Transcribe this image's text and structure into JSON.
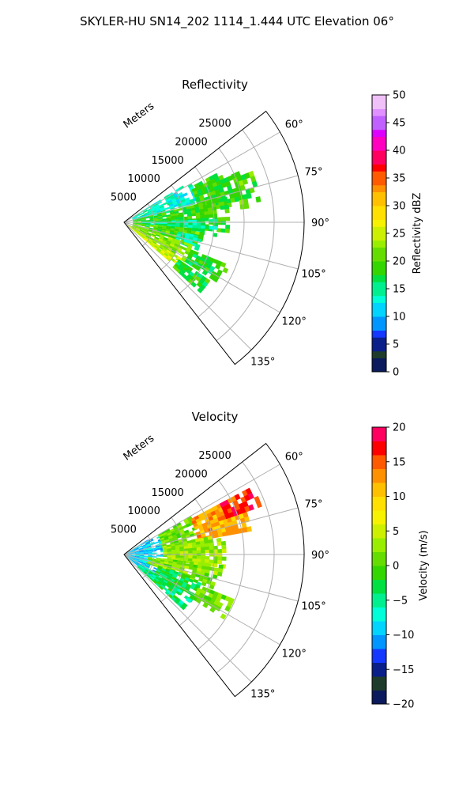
{
  "suptitle": "SKYLER-HU  SN14_202  1114_1.444 UTC Elevation 06°",
  "chart_data": [
    {
      "type": "heatmap",
      "projection": "polar-sector",
      "title": "Reflectivity",
      "radial_label": "Meters",
      "r_ticks": [
        "5000",
        "10000",
        "15000",
        "20000",
        "25000"
      ],
      "r_tick_values": [
        5000,
        10000,
        15000,
        20000,
        25000
      ],
      "rlim": [
        0,
        30000
      ],
      "theta_ticks": [
        "60°",
        "75°",
        "90°",
        "105°",
        "120°",
        "135°"
      ],
      "theta_tick_values": [
        60,
        75,
        90,
        105,
        120,
        135
      ],
      "theta_range_deg": [
        52,
        142
      ],
      "grid": true,
      "colorbar": {
        "label": "Reflectivity dBZ",
        "ticks": [
          "0",
          "5",
          "10",
          "15",
          "20",
          "25",
          "30",
          "35",
          "40",
          "45",
          "50"
        ],
        "range": [
          0,
          50
        ],
        "levels": 40,
        "colormap": [
          [
            0,
            "#0a1a5c"
          ],
          [
            2,
            "#1f3b2c"
          ],
          [
            4,
            "#0a1f8a"
          ],
          [
            6,
            "#1438ff"
          ],
          [
            8,
            "#0096ff"
          ],
          [
            10,
            "#00d4ff"
          ],
          [
            12,
            "#00ffd8"
          ],
          [
            14,
            "#00f090"
          ],
          [
            16,
            "#00e040"
          ],
          [
            18,
            "#33d600"
          ],
          [
            20,
            "#66dd00"
          ],
          [
            22,
            "#99ee00"
          ],
          [
            24,
            "#ccf000"
          ],
          [
            26,
            "#f6f200"
          ],
          [
            28,
            "#ffe000"
          ],
          [
            30,
            "#ffc000"
          ],
          [
            32,
            "#ff9000"
          ],
          [
            34,
            "#ff5a00"
          ],
          [
            36,
            "#ff0000"
          ],
          [
            38,
            "#ff0060"
          ],
          [
            40,
            "#ff00c0"
          ],
          [
            42,
            "#dd00ff"
          ],
          [
            44,
            "#c060ff"
          ],
          [
            46,
            "#e090ff"
          ],
          [
            48,
            "#f0c0f8"
          ],
          [
            50,
            "#fbe6fb"
          ]
        ]
      },
      "regions": [
        {
          "theta": [
            58,
            76
          ],
          "r": [
            1500,
            8000
          ],
          "value": 14
        },
        {
          "theta": [
            58,
            74
          ],
          "r": [
            8000,
            12500
          ],
          "value": 13
        },
        {
          "theta": [
            62,
            80
          ],
          "r": [
            12500,
            19500
          ],
          "value": 19
        },
        {
          "theta": [
            66,
            82
          ],
          "r": [
            19500,
            23000
          ],
          "value": 20
        },
        {
          "theta": [
            76,
            95
          ],
          "r": [
            1500,
            17000
          ],
          "value": 19
        },
        {
          "theta": [
            88,
            98
          ],
          "r": [
            3000,
            15000
          ],
          "value": 15
        },
        {
          "theta": [
            95,
            108
          ],
          "r": [
            1500,
            13000
          ],
          "value": 20
        },
        {
          "theta": [
            100,
            110
          ],
          "r": [
            9000,
            13000
          ],
          "value": 14
        },
        {
          "theta": [
            108,
            125
          ],
          "r": [
            1500,
            12000
          ],
          "value": 22
        },
        {
          "theta": [
            112,
            123
          ],
          "r": [
            12000,
            19000
          ],
          "value": 18
        },
        {
          "theta": [
            122,
            130
          ],
          "r": [
            800,
            11000
          ],
          "value": 25
        },
        {
          "theta": [
            124,
            132
          ],
          "r": [
            11000,
            17000
          ],
          "value": 18
        }
      ]
    },
    {
      "type": "heatmap",
      "projection": "polar-sector",
      "title": "Velocity",
      "radial_label": "Meters",
      "r_ticks": [
        "5000",
        "10000",
        "15000",
        "20000",
        "25000"
      ],
      "r_tick_values": [
        5000,
        10000,
        15000,
        20000,
        25000
      ],
      "rlim": [
        0,
        30000
      ],
      "theta_ticks": [
        "60°",
        "75°",
        "90°",
        "105°",
        "120°",
        "135°"
      ],
      "theta_tick_values": [
        60,
        75,
        90,
        105,
        120,
        135
      ],
      "theta_range_deg": [
        52,
        142
      ],
      "grid": true,
      "colorbar": {
        "label": "Velocity (m/s)",
        "ticks": [
          "−20",
          "−15",
          "−10",
          "−5",
          "0",
          "5",
          "10",
          "15",
          "20"
        ],
        "range": [
          -20,
          20
        ],
        "levels": 40,
        "colormap": [
          [
            -20,
            "#0a1a5c"
          ],
          [
            -18,
            "#1f3b2c"
          ],
          [
            -16,
            "#0a1f8a"
          ],
          [
            -14,
            "#1438ff"
          ],
          [
            -12,
            "#0096ff"
          ],
          [
            -10,
            "#00d4ff"
          ],
          [
            -8,
            "#00ffd8"
          ],
          [
            -6,
            "#00f090"
          ],
          [
            -4,
            "#00e040"
          ],
          [
            -2,
            "#33d600"
          ],
          [
            0,
            "#66dd00"
          ],
          [
            2,
            "#99ee00"
          ],
          [
            4,
            "#ccf000"
          ],
          [
            6,
            "#f6f200"
          ],
          [
            8,
            "#ffe000"
          ],
          [
            10,
            "#ffc000"
          ],
          [
            12,
            "#ff9000"
          ],
          [
            14,
            "#ff5a00"
          ],
          [
            16,
            "#ff0000"
          ],
          [
            18,
            "#ff0060"
          ],
          [
            20,
            "#ff00c0"
          ]
        ]
      },
      "regions": [
        {
          "theta": [
            58,
            130
          ],
          "r": [
            500,
            6500
          ],
          "value": -9
        },
        {
          "theta": [
            60,
            80
          ],
          "r": [
            6500,
            12500
          ],
          "value": 1
        },
        {
          "theta": [
            62,
            78
          ],
          "r": [
            12500,
            21500
          ],
          "value": 12
        },
        {
          "theta": [
            62,
            70
          ],
          "r": [
            18000,
            24000
          ],
          "value": 17
        },
        {
          "theta": [
            78,
            96
          ],
          "r": [
            6500,
            17000
          ],
          "value": 3
        },
        {
          "theta": [
            96,
            110
          ],
          "r": [
            4000,
            16000
          ],
          "value": 2
        },
        {
          "theta": [
            108,
            125
          ],
          "r": [
            6000,
            13500
          ],
          "value": -3
        },
        {
          "theta": [
            112,
            122
          ],
          "r": [
            13500,
            19500
          ],
          "value": 1
        },
        {
          "theta": [
            122,
            132
          ],
          "r": [
            3000,
            13000
          ],
          "value": -4
        }
      ]
    }
  ]
}
